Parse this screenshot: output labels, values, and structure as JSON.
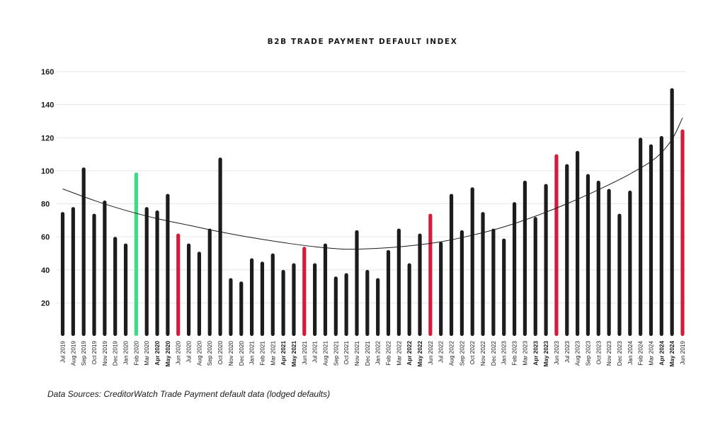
{
  "chart_data": {
    "type": "bar",
    "title": "B2B TRADE PAYMENT DEFAULT INDEX",
    "xlabel": "",
    "ylabel": "",
    "ylim": [
      0,
      160
    ],
    "yticks": [
      20,
      40,
      60,
      80,
      100,
      120,
      140,
      160
    ],
    "grid": true,
    "trendline": "polynomial (black curve)",
    "colors": {
      "default": "#1c1c1c",
      "highlight_red": "#d61a3c",
      "highlight_green": "#3ddc84",
      "trend": "#1a1a1a",
      "grid": "#e6e6e6"
    },
    "categories": [
      "Jul 2019",
      "Aug 2019",
      "Sep 2019",
      "Oct 2019",
      "Nov 2019",
      "Dec 2019",
      "Jan 2020",
      "Feb 2020",
      "Mar 2020",
      "Apr 2020",
      "May 2020",
      "Jun 2020",
      "Jul 2020",
      "Aug 2020",
      "Sep 2020",
      "Oct 2020",
      "Nov 2020",
      "Dec 2020",
      "Jan 2021",
      "Feb 2021",
      "Mar 2021",
      "Apr 2021",
      "May 2021",
      "Jun 2021",
      "Jul 2021",
      "Aug 2021",
      "Sep 2021",
      "Oct 2021",
      "Nov 2021",
      "Dec 2021",
      "Jan 2022",
      "Feb 2022",
      "Mar 2022",
      "Apr 2022",
      "May 2022",
      "Jun 2022",
      "Jul 2022",
      "Aug 2022",
      "Sep 2022",
      "Oct 2022",
      "Nov 2022",
      "Dec 2022",
      "Jan 2023",
      "Feb 2023",
      "Mar 2023",
      "Apr 2023",
      "May 2023",
      "Jun 2023",
      "Jul 2023",
      "Aug 2023",
      "Sep 2023",
      "Oct 2023",
      "Nov 2023",
      "Dec 2023",
      "Jan 2024",
      "Feb 2024",
      "Mar 2024",
      "Apr 2024",
      "May 2024",
      "Jun 2019"
    ],
    "bold_labels": [
      "Apr 2020",
      "May 2020",
      "Apr 2021",
      "May 2021",
      "Apr 2022",
      "May 2022",
      "Apr 2023",
      "May 2023",
      "Apr 2024",
      "May 2024"
    ],
    "values": [
      75,
      78,
      102,
      74,
      82,
      60,
      56,
      99,
      78,
      76,
      86,
      62,
      56,
      51,
      65,
      108,
      35,
      33,
      47,
      45,
      50,
      40,
      44,
      54,
      44,
      56,
      36,
      38,
      64,
      40,
      35,
      52,
      65,
      44,
      62,
      74,
      57,
      86,
      64,
      90,
      75,
      65,
      59,
      81,
      94,
      72,
      92,
      110,
      104,
      112,
      98,
      94,
      89,
      74,
      88,
      120,
      116,
      121,
      150,
      125
    ],
    "bar_colors": [
      "default",
      "default",
      "default",
      "default",
      "default",
      "default",
      "default",
      "green",
      "default",
      "default",
      "default",
      "red",
      "default",
      "default",
      "default",
      "default",
      "default",
      "default",
      "default",
      "default",
      "default",
      "default",
      "default",
      "red",
      "default",
      "default",
      "default",
      "default",
      "default",
      "default",
      "default",
      "default",
      "default",
      "default",
      "default",
      "red",
      "default",
      "default",
      "default",
      "default",
      "default",
      "default",
      "default",
      "default",
      "default",
      "default",
      "default",
      "red",
      "default",
      "default",
      "default",
      "default",
      "default",
      "default",
      "default",
      "default",
      "default",
      "default",
      "default",
      "red"
    ],
    "trend_values": [
      89,
      82,
      76,
      71,
      67,
      63,
      59.5,
      56.5,
      54,
      52.5,
      53,
      54.5,
      57,
      61,
      66,
      72.5,
      80,
      88.5,
      98,
      108,
      119,
      132
    ],
    "trend_x": [
      0,
      3,
      6,
      9,
      12,
      15,
      18,
      21,
      24,
      27,
      30,
      33,
      36,
      39,
      42,
      45,
      48,
      51,
      54,
      56.5,
      58,
      59
    ]
  },
  "source_note": "Data Sources: CreditorWatch Trade Payment default data (lodged defaults)"
}
